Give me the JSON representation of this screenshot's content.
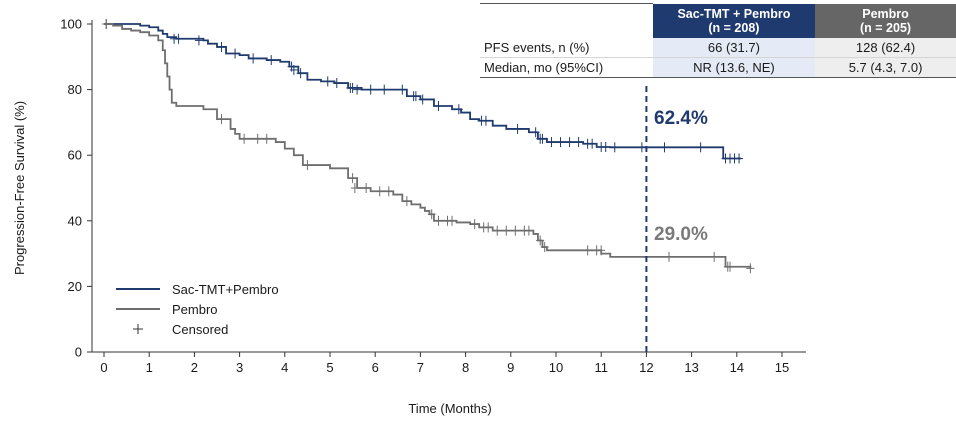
{
  "chart_data": {
    "type": "line",
    "title": "",
    "xlabel": "Time (Months)",
    "ylabel": "Progression-Free Survival (%)",
    "xlim": [
      0,
      15
    ],
    "ylim": [
      0,
      100
    ],
    "x_ticks": [
      0,
      1,
      2,
      3,
      4,
      5,
      6,
      7,
      8,
      9,
      10,
      11,
      12,
      13,
      14,
      15
    ],
    "y_ticks": [
      0,
      20,
      40,
      60,
      80,
      100
    ],
    "grid": false,
    "legend_position": "bottom-left",
    "series": [
      {
        "name": "Sac-TMT+Pembro",
        "color": "#1f3a6e",
        "step": true,
        "points": [
          [
            0,
            100
          ],
          [
            0.6,
            100
          ],
          [
            0.8,
            99.5
          ],
          [
            1.0,
            99
          ],
          [
            1.2,
            98
          ],
          [
            1.3,
            97
          ],
          [
            1.4,
            96
          ],
          [
            1.6,
            95.5
          ],
          [
            2.2,
            95
          ],
          [
            2.3,
            94
          ],
          [
            2.5,
            93
          ],
          [
            2.7,
            91
          ],
          [
            3.0,
            90.5
          ],
          [
            3.2,
            89.5
          ],
          [
            3.6,
            89
          ],
          [
            3.9,
            88.5
          ],
          [
            4.1,
            87
          ],
          [
            4.3,
            85
          ],
          [
            4.5,
            83
          ],
          [
            4.8,
            82.5
          ],
          [
            5.1,
            82
          ],
          [
            5.4,
            80.5
          ],
          [
            5.7,
            80
          ],
          [
            6.7,
            78
          ],
          [
            7.0,
            77
          ],
          [
            7.3,
            75
          ],
          [
            7.7,
            74
          ],
          [
            7.9,
            73
          ],
          [
            8.1,
            71
          ],
          [
            8.3,
            70.5
          ],
          [
            8.6,
            69
          ],
          [
            8.9,
            68
          ],
          [
            9.4,
            67
          ],
          [
            9.6,
            65
          ],
          [
            9.8,
            64
          ],
          [
            10.6,
            63.5
          ],
          [
            10.9,
            62.5
          ],
          [
            11.2,
            62.4
          ],
          [
            13.6,
            62.4
          ],
          [
            13.7,
            59
          ],
          [
            14.1,
            59
          ]
        ],
        "censored": [
          [
            0.05,
            100
          ],
          [
            1.55,
            95.5
          ],
          [
            1.65,
            95.5
          ],
          [
            2.1,
            95
          ],
          [
            2.6,
            93
          ],
          [
            2.9,
            91
          ],
          [
            3.3,
            89.5
          ],
          [
            3.7,
            89
          ],
          [
            4.15,
            87
          ],
          [
            4.2,
            86
          ],
          [
            4.35,
            85
          ],
          [
            4.95,
            82.5
          ],
          [
            5.15,
            82
          ],
          [
            5.45,
            80.5
          ],
          [
            5.5,
            80.5
          ],
          [
            5.6,
            80
          ],
          [
            5.9,
            80
          ],
          [
            6.2,
            80
          ],
          [
            6.6,
            80
          ],
          [
            6.85,
            78
          ],
          [
            6.9,
            78
          ],
          [
            7.05,
            77
          ],
          [
            7.4,
            75
          ],
          [
            7.85,
            74
          ],
          [
            8.35,
            70.5
          ],
          [
            8.45,
            70.5
          ],
          [
            9.15,
            68
          ],
          [
            9.55,
            67
          ],
          [
            9.65,
            65
          ],
          [
            9.7,
            65
          ],
          [
            9.9,
            64
          ],
          [
            10.1,
            64
          ],
          [
            10.3,
            64
          ],
          [
            10.5,
            64
          ],
          [
            10.7,
            63.5
          ],
          [
            10.8,
            63.5
          ],
          [
            11.0,
            62.5
          ],
          [
            11.1,
            62.5
          ],
          [
            11.3,
            62.4
          ],
          [
            11.9,
            62.4
          ],
          [
            12.4,
            62.4
          ],
          [
            13.2,
            62.4
          ],
          [
            13.75,
            59
          ],
          [
            13.85,
            59
          ],
          [
            13.95,
            59
          ],
          [
            14.05,
            59
          ]
        ],
        "annotation": "62.4%"
      },
      {
        "name": "Pembro",
        "color": "#6e6e6e",
        "step": true,
        "points": [
          [
            0,
            100
          ],
          [
            0.2,
            99.5
          ],
          [
            0.4,
            98.5
          ],
          [
            0.6,
            98
          ],
          [
            0.8,
            97.5
          ],
          [
            1.0,
            96.5
          ],
          [
            1.2,
            95
          ],
          [
            1.3,
            92
          ],
          [
            1.35,
            88
          ],
          [
            1.4,
            84
          ],
          [
            1.45,
            80
          ],
          [
            1.5,
            76
          ],
          [
            1.6,
            75
          ],
          [
            2.2,
            74
          ],
          [
            2.5,
            71
          ],
          [
            2.8,
            68
          ],
          [
            2.9,
            66.5
          ],
          [
            3.0,
            65
          ],
          [
            3.8,
            64
          ],
          [
            4.0,
            62
          ],
          [
            4.2,
            60
          ],
          [
            4.4,
            57
          ],
          [
            5.0,
            56
          ],
          [
            5.4,
            53
          ],
          [
            5.6,
            50
          ],
          [
            5.9,
            49
          ],
          [
            6.4,
            48
          ],
          [
            6.6,
            46
          ],
          [
            6.8,
            45
          ],
          [
            7.0,
            44
          ],
          [
            7.1,
            43
          ],
          [
            7.2,
            42
          ],
          [
            7.3,
            40
          ],
          [
            7.8,
            39.5
          ],
          [
            8.1,
            39
          ],
          [
            8.3,
            38
          ],
          [
            8.6,
            37
          ],
          [
            9.5,
            36
          ],
          [
            9.6,
            34
          ],
          [
            9.7,
            32
          ],
          [
            9.8,
            31
          ],
          [
            11.0,
            30
          ],
          [
            11.2,
            29
          ],
          [
            13.7,
            29
          ],
          [
            13.75,
            26
          ],
          [
            14.3,
            25.5
          ]
        ],
        "censored": [
          [
            0.05,
            100
          ],
          [
            2.6,
            71
          ],
          [
            3.1,
            65
          ],
          [
            3.4,
            65
          ],
          [
            3.6,
            65
          ],
          [
            4.5,
            57
          ],
          [
            5.5,
            53
          ],
          [
            5.55,
            50
          ],
          [
            5.8,
            50
          ],
          [
            6.1,
            49
          ],
          [
            6.3,
            49
          ],
          [
            6.7,
            46
          ],
          [
            7.25,
            42
          ],
          [
            7.4,
            40
          ],
          [
            7.6,
            40
          ],
          [
            7.7,
            40
          ],
          [
            8.2,
            39
          ],
          [
            8.4,
            38
          ],
          [
            8.5,
            38
          ],
          [
            8.7,
            37
          ],
          [
            8.9,
            37
          ],
          [
            9.1,
            37
          ],
          [
            9.3,
            37
          ],
          [
            9.4,
            37
          ],
          [
            9.65,
            34
          ],
          [
            9.75,
            32
          ],
          [
            10.7,
            31
          ],
          [
            10.9,
            31
          ],
          [
            11.0,
            31
          ],
          [
            12.5,
            29
          ],
          [
            13.5,
            29
          ],
          [
            13.8,
            26
          ],
          [
            13.85,
            26
          ],
          [
            14.3,
            25.5
          ]
        ],
        "annotation": "29.0%"
      }
    ],
    "reference_line": {
      "x": 12,
      "style": "dashed",
      "color": "#1f3a6e"
    },
    "legend": [
      "Sac-TMT+Pembro",
      "Pembro",
      "Censored"
    ]
  },
  "table": {
    "headers": [
      {
        "line1": "",
        "line2": ""
      },
      {
        "line1": "Sac-TMT + Pembro",
        "line2": "(n = 208)"
      },
      {
        "line1": "Pembro",
        "line2": "(n = 205)"
      }
    ],
    "rows": [
      [
        "PFS events, n (%)",
        "66 (31.7)",
        "128 (62.4)"
      ],
      [
        "Median, mo (95%CI)",
        "NR (13.6, NE)",
        "5.7 (4.3, 7.0)"
      ]
    ]
  }
}
